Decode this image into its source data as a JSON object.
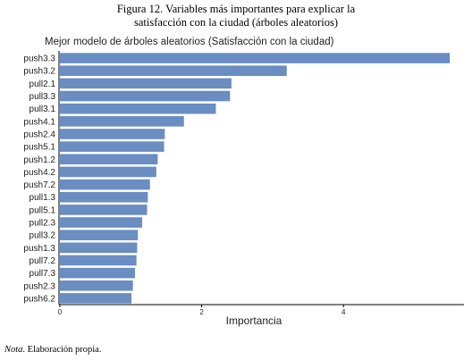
{
  "figure": {
    "title_line1": "Figura 12. Variables más importantes para explicar la",
    "title_line2": "satisfacción con la ciudad (árboles aleatorios)",
    "note_label": "Nota",
    "note_text": ". Elaboración propia."
  },
  "chart_data": {
    "type": "bar",
    "orientation": "horizontal",
    "title": "Mejor modelo de árboles aleatorios (Satisfacción con la ciudad)",
    "xlabel": "Importancia",
    "ylabel": "",
    "categories": [
      "push3.3",
      "push3.2",
      "pull2.1",
      "pull3.3",
      "pull3.1",
      "push4.1",
      "push2.4",
      "push5.1",
      "push1.2",
      "push4.2",
      "push7.2",
      "pull1.3",
      "pull5.1",
      "pull2.3",
      "pull3.2",
      "push1.3",
      "pull7.2",
      "pull7.3",
      "push2.3",
      "push6.2"
    ],
    "values": [
      5.5,
      3.2,
      2.42,
      2.4,
      2.2,
      1.75,
      1.48,
      1.47,
      1.38,
      1.36,
      1.27,
      1.24,
      1.23,
      1.16,
      1.1,
      1.09,
      1.08,
      1.06,
      1.03,
      1.01
    ],
    "xlim": [
      0,
      5.7
    ],
    "xticks": [
      0,
      2,
      4
    ],
    "grid": false,
    "colors": {
      "bar": "#6a8dc2",
      "axis": "#000000",
      "text": "#222222"
    }
  }
}
